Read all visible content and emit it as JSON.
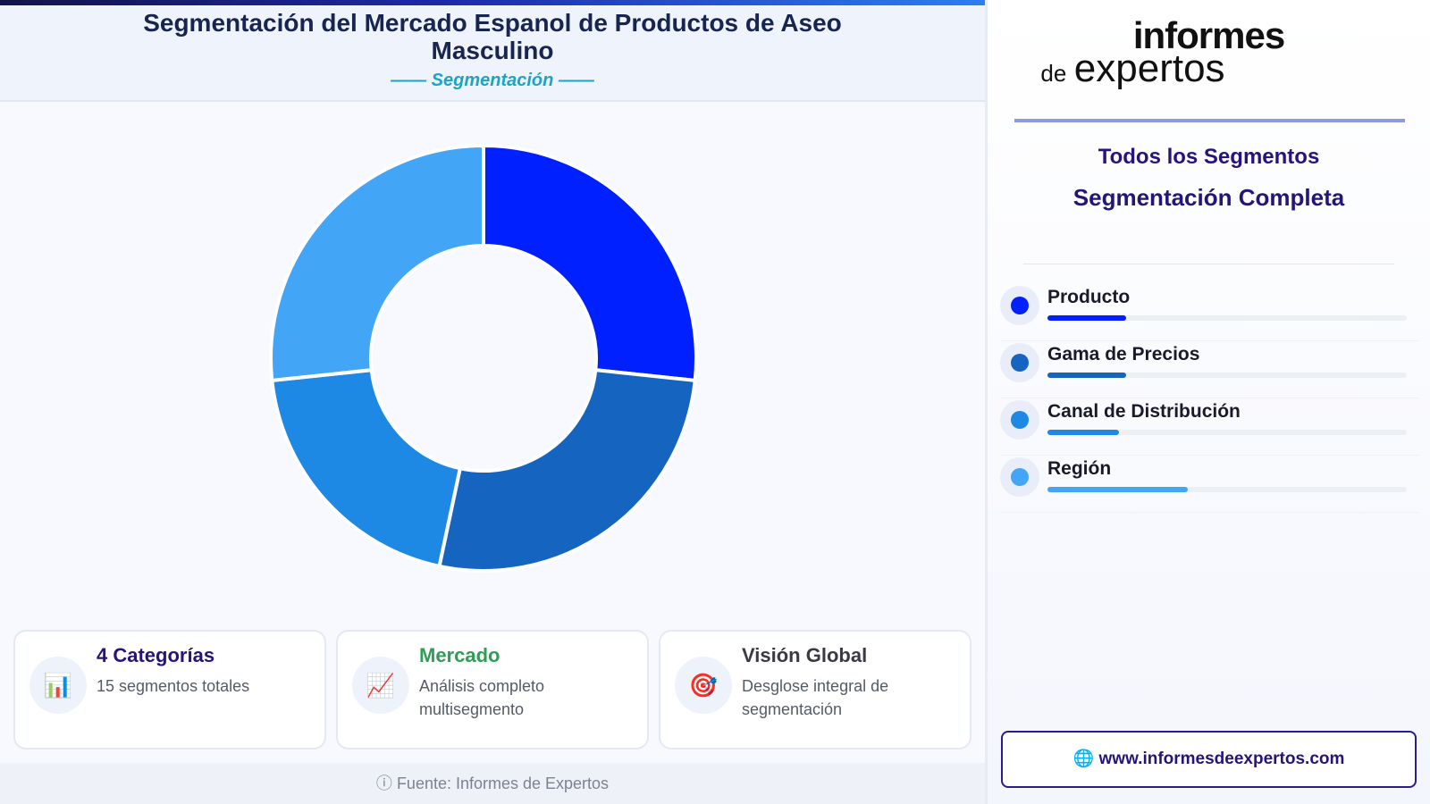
{
  "header": {
    "title": "Segmentación del Mercado Espanol de Productos de Aseo Masculino",
    "subtitle": "—— Segmentación ——"
  },
  "chart_data": {
    "type": "pie",
    "donut": true,
    "categories": [
      "Producto",
      "Gama de Precios",
      "Canal de Distribución",
      "Región"
    ],
    "values": [
      4,
      4,
      3,
      4
    ],
    "colors": [
      "#0020ff",
      "#1565c0",
      "#1e88e5",
      "#42a5f5"
    ]
  },
  "cards": [
    {
      "icon": "📊",
      "icon_name": "bar-chart-icon",
      "title": "4 Categorías",
      "subtitle": "15 segmentos totales",
      "color": "#24157a"
    },
    {
      "icon": "📈",
      "icon_name": "line-chart-icon",
      "title": "Mercado",
      "subtitle": "Análisis completo multisegmento",
      "color": "#2e9e55"
    },
    {
      "icon": "🎯",
      "icon_name": "target-icon",
      "title": "Visión Global",
      "subtitle": "Desglose integral de segmentación",
      "color": "#3a3a44"
    }
  ],
  "footer": {
    "icon": "ⓘ",
    "text": "Fuente: Informes de Expertos"
  },
  "logo": {
    "line1": "informes",
    "line2": "de",
    "line3": "expertos"
  },
  "sidebar": {
    "heading1": "Todos los Segmentos",
    "heading2": "Segmentación Completa",
    "segments": [
      {
        "label": "Producto",
        "color": "#0020ff",
        "fill": 0.22
      },
      {
        "label": "Gama de Precios",
        "color": "#1565c0",
        "fill": 0.22
      },
      {
        "label": "Canal de Distribución",
        "color": "#1e88e5",
        "fill": 0.2
      },
      {
        "label": "Región",
        "color": "#42a5f5",
        "fill": 0.39
      }
    ],
    "url_icon": "🌐",
    "url": "www.informesdeexpertos.com"
  }
}
